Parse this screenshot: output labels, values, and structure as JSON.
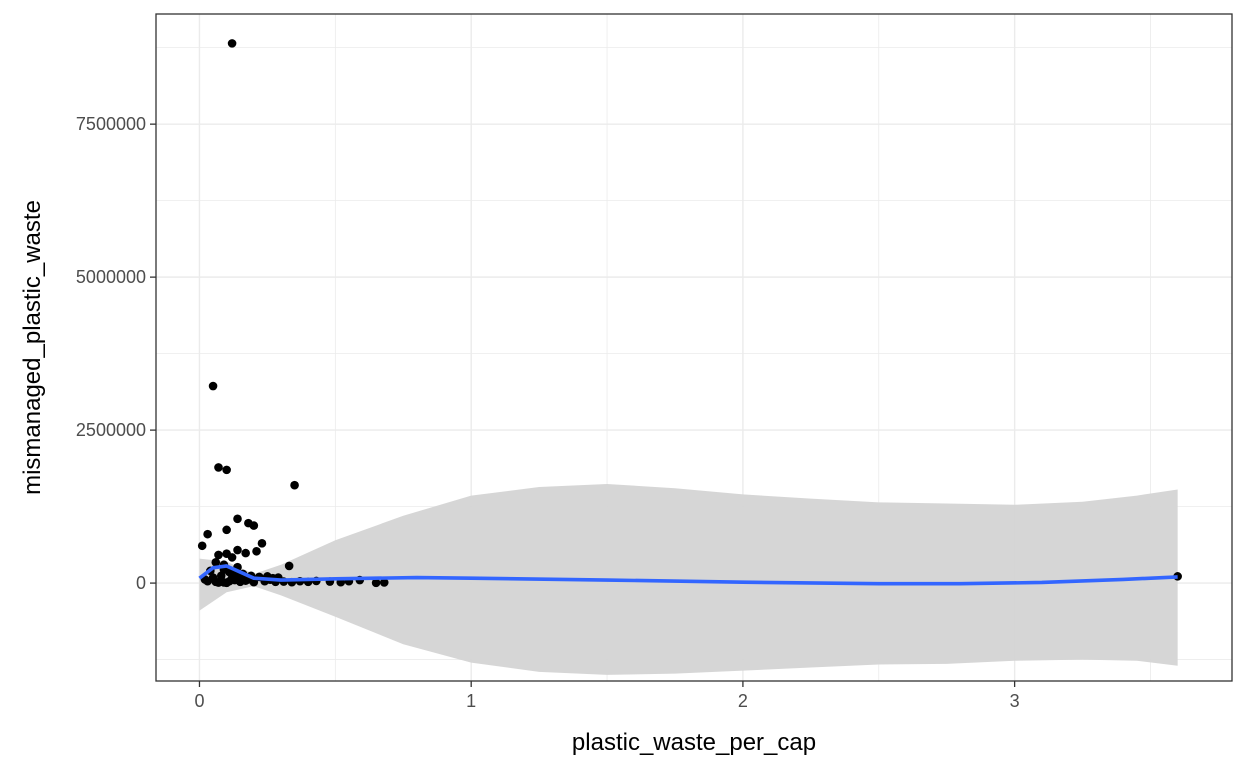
{
  "chart_data": {
    "type": "scatter",
    "title": "",
    "xlabel": "plastic_waste_per_cap",
    "ylabel": "mismanaged_plastic_waste",
    "xlim": [
      -0.16,
      3.8
    ],
    "ylim": [
      -1600000,
      9300000
    ],
    "x_ticks": [
      0,
      1,
      2,
      3
    ],
    "x_tick_labels": [
      "0",
      "1",
      "2",
      "3"
    ],
    "y_ticks": [
      0,
      2500000,
      5000000,
      7500000
    ],
    "y_tick_labels": [
      "0",
      "2500000",
      "5000000",
      "7500000"
    ],
    "grid": true,
    "legend": "none",
    "colors": {
      "points": "#000000",
      "smooth_line": "#3366ff",
      "ribbon": "#d4d4d4",
      "grid": "#ebebeb",
      "panel_border": "#333333"
    },
    "points": [
      {
        "x": 0.12,
        "y": 8820000
      },
      {
        "x": 0.05,
        "y": 3220000
      },
      {
        "x": 0.07,
        "y": 1890000
      },
      {
        "x": 0.1,
        "y": 1850000
      },
      {
        "x": 0.35,
        "y": 1600000
      },
      {
        "x": 0.14,
        "y": 1050000
      },
      {
        "x": 0.18,
        "y": 980000
      },
      {
        "x": 0.2,
        "y": 940000
      },
      {
        "x": 0.1,
        "y": 870000
      },
      {
        "x": 0.03,
        "y": 800000
      },
      {
        "x": 0.23,
        "y": 650000
      },
      {
        "x": 0.01,
        "y": 610000
      },
      {
        "x": 0.14,
        "y": 540000
      },
      {
        "x": 0.17,
        "y": 490000
      },
      {
        "x": 0.21,
        "y": 520000
      },
      {
        "x": 0.07,
        "y": 460000
      },
      {
        "x": 0.1,
        "y": 480000
      },
      {
        "x": 0.12,
        "y": 420000
      },
      {
        "x": 0.33,
        "y": 280000
      },
      {
        "x": 0.06,
        "y": 340000
      },
      {
        "x": 0.09,
        "y": 300000
      },
      {
        "x": 0.14,
        "y": 260000
      },
      {
        "x": 0.04,
        "y": 200000
      },
      {
        "x": 0.11,
        "y": 180000
      },
      {
        "x": 0.16,
        "y": 150000
      },
      {
        "x": 0.19,
        "y": 120000
      },
      {
        "x": 0.22,
        "y": 100000
      },
      {
        "x": 0.25,
        "y": 110000
      },
      {
        "x": 0.27,
        "y": 80000
      },
      {
        "x": 0.29,
        "y": 90000
      },
      {
        "x": 0.08,
        "y": 120000
      },
      {
        "x": 0.05,
        "y": 90000
      },
      {
        "x": 0.02,
        "y": 60000
      },
      {
        "x": 0.03,
        "y": 30000
      },
      {
        "x": 0.06,
        "y": 20000
      },
      {
        "x": 0.08,
        "y": 40000
      },
      {
        "x": 0.09,
        "y": 10000
      },
      {
        "x": 0.11,
        "y": 30000
      },
      {
        "x": 0.13,
        "y": 50000
      },
      {
        "x": 0.15,
        "y": 20000
      },
      {
        "x": 0.17,
        "y": 40000
      },
      {
        "x": 0.2,
        "y": 15000
      },
      {
        "x": 0.24,
        "y": 30000
      },
      {
        "x": 0.28,
        "y": 20000
      },
      {
        "x": 0.31,
        "y": 25000
      },
      {
        "x": 0.34,
        "y": 15000
      },
      {
        "x": 0.37,
        "y": 30000
      },
      {
        "x": 0.4,
        "y": 20000
      },
      {
        "x": 0.43,
        "y": 35000
      },
      {
        "x": 0.48,
        "y": 25000
      },
      {
        "x": 0.52,
        "y": 15000
      },
      {
        "x": 0.55,
        "y": 30000
      },
      {
        "x": 0.59,
        "y": 50000
      },
      {
        "x": 0.65,
        "y": 5000
      },
      {
        "x": 0.68,
        "y": 10000
      },
      {
        "x": 0.12,
        "y": 80000
      },
      {
        "x": 0.13,
        "y": 160000
      },
      {
        "x": 0.09,
        "y": 220000
      },
      {
        "x": 0.15,
        "y": 90000
      },
      {
        "x": 0.1,
        "y": 5000
      },
      {
        "x": 0.07,
        "y": 8000
      },
      {
        "x": 0.18,
        "y": 60000
      },
      {
        "x": 0.26,
        "y": 55000
      },
      {
        "x": 3.6,
        "y": 110000
      }
    ],
    "smooth_line": [
      {
        "x": 0.0,
        "y": 80000
      },
      {
        "x": 0.05,
        "y": 250000
      },
      {
        "x": 0.1,
        "y": 280000
      },
      {
        "x": 0.15,
        "y": 180000
      },
      {
        "x": 0.2,
        "y": 80000
      },
      {
        "x": 0.3,
        "y": 50000
      },
      {
        "x": 0.5,
        "y": 70000
      },
      {
        "x": 0.8,
        "y": 90000
      },
      {
        "x": 1.0,
        "y": 80000
      },
      {
        "x": 1.5,
        "y": 50000
      },
      {
        "x": 2.0,
        "y": 15000
      },
      {
        "x": 2.5,
        "y": -10000
      },
      {
        "x": 2.8,
        "y": -10000
      },
      {
        "x": 3.1,
        "y": 10000
      },
      {
        "x": 3.4,
        "y": 60000
      },
      {
        "x": 3.6,
        "y": 100000
      }
    ],
    "ribbon": [
      {
        "x": 0.0,
        "lower": -450000,
        "upper": 400000
      },
      {
        "x": 0.1,
        "lower": -150000,
        "upper": 350000
      },
      {
        "x": 0.2,
        "lower": -50000,
        "upper": 150000
      },
      {
        "x": 0.3,
        "lower": -200000,
        "upper": 300000
      },
      {
        "x": 0.5,
        "lower": -550000,
        "upper": 700000
      },
      {
        "x": 0.75,
        "lower": -1000000,
        "upper": 1100000
      },
      {
        "x": 1.0,
        "lower": -1300000,
        "upper": 1430000
      },
      {
        "x": 1.25,
        "lower": -1450000,
        "upper": 1570000
      },
      {
        "x": 1.5,
        "lower": -1500000,
        "upper": 1620000
      },
      {
        "x": 1.75,
        "lower": -1480000,
        "upper": 1550000
      },
      {
        "x": 2.0,
        "lower": -1430000,
        "upper": 1450000
      },
      {
        "x": 2.25,
        "lower": -1380000,
        "upper": 1380000
      },
      {
        "x": 2.5,
        "lower": -1330000,
        "upper": 1320000
      },
      {
        "x": 2.75,
        "lower": -1320000,
        "upper": 1300000
      },
      {
        "x": 3.0,
        "lower": -1270000,
        "upper": 1280000
      },
      {
        "x": 3.25,
        "lower": -1250000,
        "upper": 1330000
      },
      {
        "x": 3.45,
        "lower": -1270000,
        "upper": 1430000
      },
      {
        "x": 3.6,
        "lower": -1350000,
        "upper": 1530000
      }
    ]
  }
}
